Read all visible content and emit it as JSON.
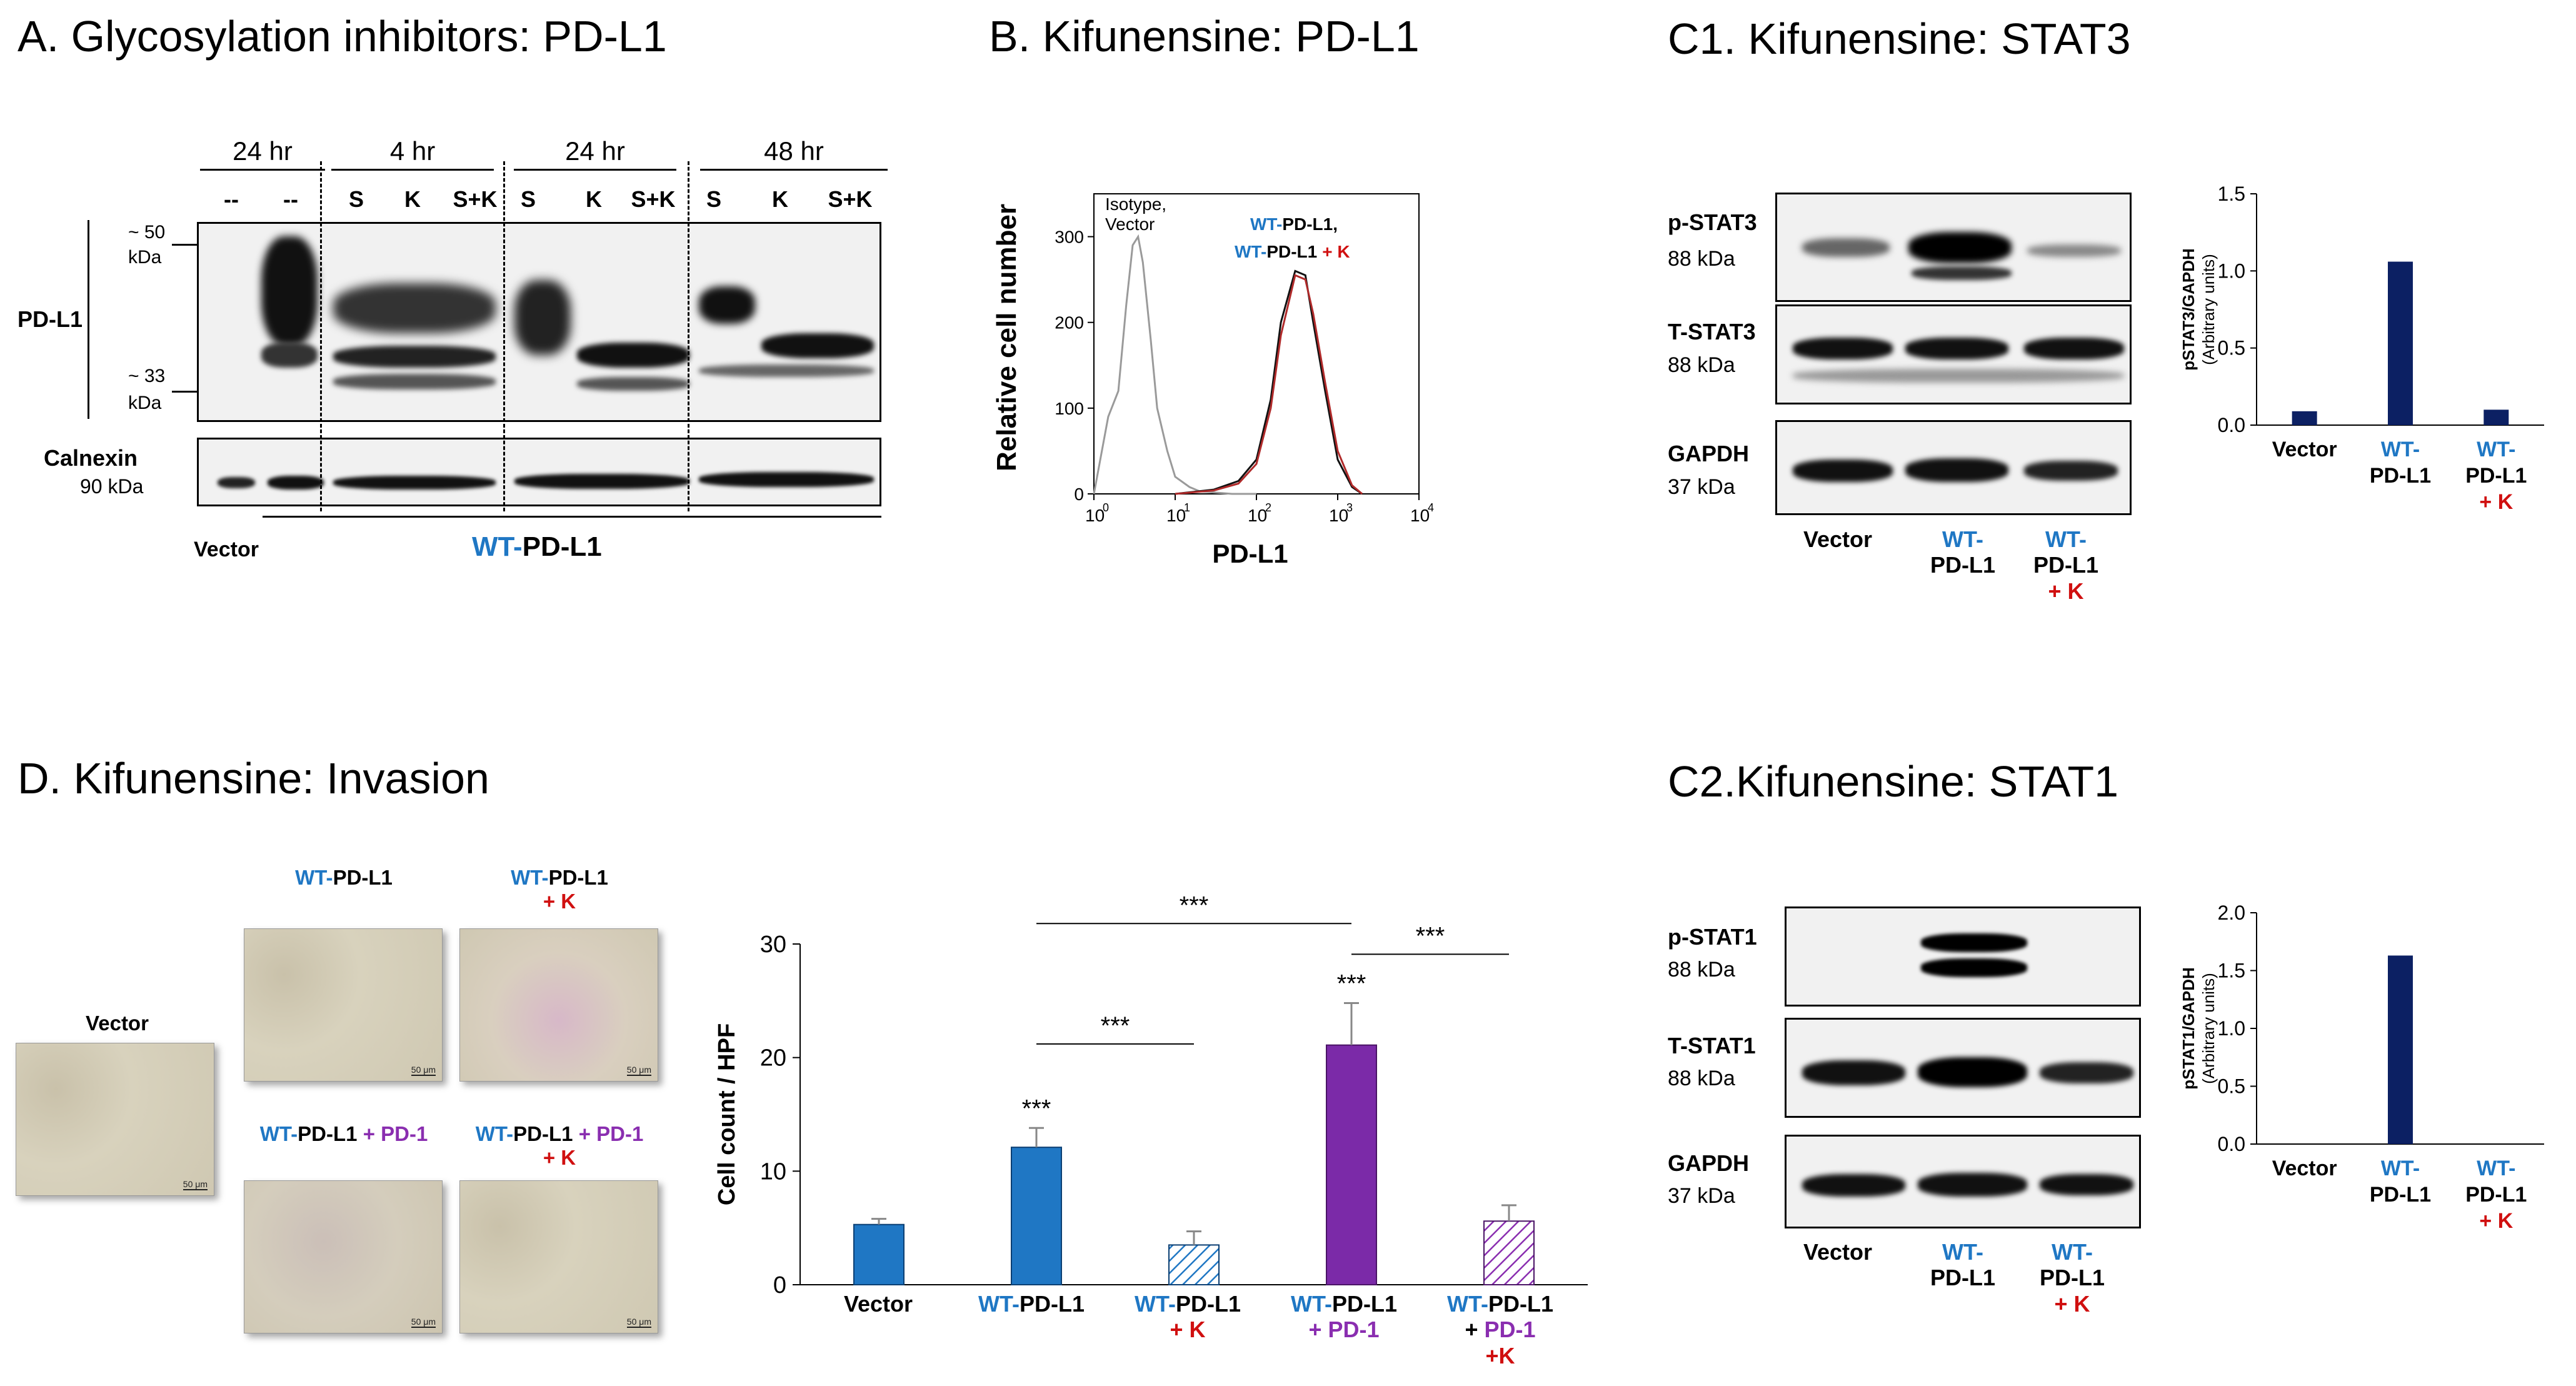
{
  "panels": {
    "A": {
      "title": "A. Glycosylation inhibitors: PD-L1",
      "time_groups": [
        "24 hr",
        "4 hr",
        "24 hr",
        "48 hr"
      ],
      "lane_labels": [
        "--",
        "--",
        "S",
        "K",
        "S+K",
        "S",
        "K",
        "S+K",
        "S",
        "K",
        "S+K"
      ],
      "marker_top": "~ 50",
      "marker_top_unit": "kDa",
      "marker_bottom": "~ 33",
      "marker_bottom_unit": "kDa",
      "blot1_label": "PD-L1",
      "blot2_label": "Calnexin",
      "blot2_kda": "90 kDa",
      "vector_label": "Vector",
      "group_wt": "WT-",
      "group_rest": "PD-L1"
    },
    "B": {
      "title": "B. Kifunensine: PD-L1",
      "ylabel": "Relative cell number",
      "xlabel": "PD-L1",
      "yticks": [
        "0",
        "100",
        "200",
        "300"
      ],
      "xticks": [
        "10",
        "10",
        "10",
        "10",
        "10"
      ],
      "xtick_exps": [
        "0",
        "1",
        "2",
        "3",
        "4"
      ],
      "iso_label_1": "Isotype,",
      "iso_label_2": "Vector",
      "wt_1a": "WT-",
      "wt_1b": "PD-L1,",
      "wt_2a": "WT-",
      "wt_2b": "PD-L1",
      "wt_2c": "+ K"
    },
    "C1": {
      "title": "C1. Kifunensine: STAT3",
      "rows": [
        {
          "name": "p-STAT3",
          "kda": "88 kDa"
        },
        {
          "name": "T-STAT3",
          "kda": "88 kDa"
        },
        {
          "name": "GAPDH",
          "kda": "37 kDa"
        }
      ],
      "lanes": {
        "vector": "Vector",
        "wt1": "WT-",
        "wt2": "PD-L1",
        "k": "+ K"
      }
    },
    "C2": {
      "title": "C2.Kifunensine: STAT1",
      "rows": [
        {
          "name": "p-STAT1",
          "kda": "88 kDa"
        },
        {
          "name": "T-STAT1",
          "kda": "88 kDa"
        },
        {
          "name": "GAPDH",
          "kda": "37 kDa"
        }
      ],
      "lanes": {
        "vector": "Vector",
        "wt1": "WT-",
        "wt2": "PD-L1",
        "k": "+ K"
      }
    },
    "D": {
      "title": "D. Kifunensine: Invasion",
      "images": {
        "vector": "Vector",
        "wt_a": "WT-",
        "wt_b": "PD-L1",
        "wtk_a": "WT-",
        "wtk_b": "PD-L1",
        "wtk_c": "+ K",
        "wtpd1_a": "WT-",
        "wtpd1_b": "PD-L1",
        "wtpd1_c": "+ PD-1",
        "wtpd1k_a": "WT-",
        "wtpd1k_b": "PD-L1",
        "wtpd1k_c": "+ PD-1",
        "wtpd1k_d": "+ K",
        "scale": "50 μm"
      },
      "xcat": {
        "vector": "Vector",
        "wt_a": "WT-",
        "wt_b": "PD-L1",
        "wtk_a": "WT-",
        "wtk_b": "PD-L1",
        "wtk_c": "+ K",
        "wtpd1_a": "WT-",
        "wtpd1_b": "PD-L1",
        "wtpd1_c": "+ PD-1",
        "wtpd1k_a": "WT-",
        "wtpd1k_b": "PD-L1",
        "wtpd1k_c": "+",
        "wtpd1k_d": "PD-1",
        "wtpd1k_e": "+K"
      }
    }
  },
  "colors": {
    "wt_blue": "#1f77c4",
    "k_red": "#d01010",
    "pd1_purple": "#8a2eb0",
    "bar_navy": "#0c2063",
    "bar_blue": "#1f77c4"
  },
  "chart_data": [
    {
      "id": "B",
      "type": "line",
      "title": "B. Kifunensine: PD-L1",
      "xlabel": "PD-L1",
      "ylabel": "Relative cell number",
      "xscale": "log",
      "xlim": [
        1,
        10000
      ],
      "ylim": [
        0,
        350
      ],
      "series": [
        {
          "name": "Isotype, Vector",
          "x": [
            1,
            1.5,
            2,
            2.5,
            3,
            3.5,
            4,
            5,
            6,
            8,
            10,
            15,
            20,
            50,
            100
          ],
          "y": [
            0,
            90,
            120,
            220,
            290,
            300,
            270,
            180,
            100,
            50,
            20,
            8,
            3,
            0,
            0
          ]
        },
        {
          "name": "WT-PD-L1",
          "x": [
            10,
            30,
            60,
            100,
            150,
            200,
            300,
            400,
            500,
            700,
            1000,
            1500,
            2000
          ],
          "y": [
            0,
            5,
            15,
            40,
            110,
            200,
            260,
            255,
            200,
            120,
            40,
            8,
            0
          ]
        },
        {
          "name": "WT-PD-L1 + K",
          "x": [
            10,
            30,
            60,
            100,
            150,
            200,
            300,
            400,
            500,
            700,
            1000,
            1500,
            2000
          ],
          "y": [
            0,
            4,
            12,
            35,
            100,
            185,
            255,
            250,
            210,
            130,
            50,
            10,
            0
          ]
        }
      ]
    },
    {
      "id": "C1",
      "type": "bar",
      "ylabel": "pSTAT3/GAPDH",
      "ylabel2": "(Arbitrary units)",
      "ylim": [
        0,
        1.5
      ],
      "yticks": [
        "0.0",
        "0.5",
        "1.0",
        "1.5"
      ],
      "categories": [
        "Vector",
        "WT-PD-L1",
        "WT-PD-L1 + K"
      ],
      "values": [
        0.09,
        1.06,
        0.1
      ]
    },
    {
      "id": "C2",
      "type": "bar",
      "ylabel": "pSTAT1/GAPDH",
      "ylabel2": "(Arbitrary units)",
      "ylim": [
        0,
        2.0
      ],
      "yticks": [
        "0.0",
        "0.5",
        "1.0",
        "1.5",
        "2.0"
      ],
      "categories": [
        "Vector",
        "WT-PD-L1",
        "WT-PD-L1 + K"
      ],
      "values": [
        0.0,
        1.63,
        0.0
      ]
    },
    {
      "id": "D",
      "type": "bar",
      "ylabel": "Cell count / HPF",
      "ylim": [
        0,
        30
      ],
      "yticks": [
        "0",
        "10",
        "20",
        "30"
      ],
      "categories": [
        "Vector",
        "WT-PD-L1",
        "WT-PD-L1 + K",
        "WT-PD-L1 + PD-1",
        "WT-PD-L1 + PD-1 +K"
      ],
      "values": [
        5.3,
        12.1,
        3.5,
        21.1,
        5.6
      ],
      "errors": [
        0.5,
        1.7,
        1.2,
        3.7,
        1.4
      ],
      "significance": [
        "",
        "***",
        "",
        "***",
        ""
      ],
      "brackets": [
        "***",
        "***",
        "***"
      ]
    }
  ]
}
